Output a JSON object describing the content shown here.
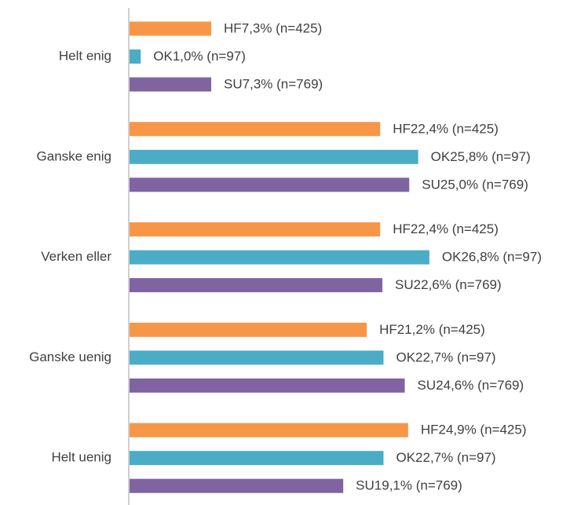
{
  "chart_data": {
    "type": "bar",
    "orientation": "horizontal",
    "categories": [
      "Helt enig",
      "Ganske enig",
      "Verken eller",
      "Ganske uenig",
      "Helt uenig"
    ],
    "series": [
      {
        "name": "HF",
        "color": "#F79646",
        "values": [
          7.3,
          22.4,
          22.4,
          21.2,
          24.9
        ],
        "value_labels": [
          "7,3% (n=425)",
          "22,4% (n=425)",
          "22,4% (n=425)",
          "21,2% (n=425)",
          "24,9% (n=425)"
        ]
      },
      {
        "name": "OK",
        "color": "#4BACC6",
        "values": [
          1.0,
          25.8,
          26.8,
          22.7,
          22.7
        ],
        "value_labels": [
          "1,0% (n=97)",
          "25,8% (n=97)",
          "26,8% (n=97)",
          "22,7% (n=97)",
          "22,7% (n=97)"
        ]
      },
      {
        "name": "SU",
        "color": "#8064A2",
        "values": [
          7.3,
          25.0,
          22.6,
          24.6,
          19.1
        ],
        "value_labels": [
          "7,3% (n=769)",
          "25,0% (n=769)",
          "22,6% (n=769)",
          "24,6% (n=769)",
          "19,1% (n=769)"
        ]
      }
    ]
  }
}
